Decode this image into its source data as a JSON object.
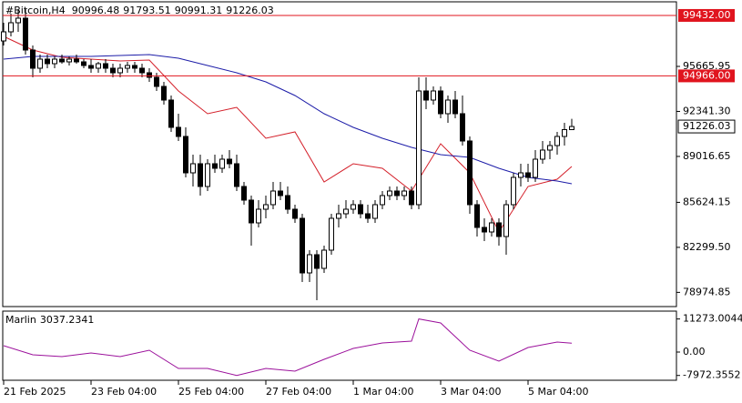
{
  "chart_data": [
    {
      "type": "candlestick",
      "symbol": "#Bitcoin,H4",
      "open": [
        97548,
        98220,
        98892,
        99228,
        96876,
        95532,
        96204,
        95868,
        96204,
        96002,
        96204,
        96002,
        95734,
        95532,
        95868,
        95532,
        95196,
        95532,
        95734,
        95532,
        95196,
        94860,
        94188,
        93180,
        91164,
        90492,
        87804,
        88476,
        86796,
        88476,
        88140,
        88812,
        88476,
        86796,
        85788,
        84108,
        85116,
        85452,
        86460,
        86124,
        85116,
        84444,
        80412,
        81756,
        80748,
        82092,
        84444,
        84780,
        85116,
        85452,
        84780,
        84444,
        85452,
        86124,
        86460,
        86124,
        86460,
        85452,
        93852,
        93180,
        93852,
        92172,
        93180,
        92172,
        90156,
        85452,
        83772,
        83436,
        84108,
        83100,
        85452,
        87468,
        87804,
        87468,
        88812,
        89484,
        89820,
        90492,
        90996.48
      ],
      "high": [
        98892,
        99564,
        99900,
        99900,
        97212,
        96540,
        96540,
        96406,
        96540,
        96406,
        96540,
        96204,
        96204,
        96002,
        96204,
        95868,
        95868,
        96002,
        96002,
        95868,
        95532,
        95196,
        94524,
        93516,
        92172,
        91164,
        89148,
        89148,
        88812,
        89148,
        89148,
        89484,
        89148,
        87132,
        86124,
        85788,
        86124,
        87132,
        87132,
        86796,
        85452,
        84780,
        82092,
        82092,
        82428,
        84780,
        85452,
        85788,
        85788,
        85788,
        85452,
        85788,
        86460,
        86796,
        86796,
        86796,
        86796,
        94860,
        94860,
        94188,
        94188,
        93516,
        93852,
        93516,
        90492,
        85788,
        84444,
        84444,
        84444,
        85788,
        87804,
        88476,
        88476,
        89484,
        90156,
        90156,
        90828,
        91500,
        91793.51
      ],
      "low": [
        97212,
        97884,
        98220,
        96540,
        94860,
        95196,
        95532,
        95532,
        95868,
        95734,
        95868,
        95532,
        95196,
        95196,
        95196,
        94860,
        94860,
        95196,
        95196,
        94860,
        94524,
        93852,
        92844,
        90828,
        90156,
        87468,
        86796,
        86124,
        86460,
        87804,
        87804,
        88140,
        86460,
        85452,
        82428,
        83772,
        84444,
        85116,
        85788,
        84780,
        84108,
        79740,
        79740,
        78396,
        80412,
        81756,
        83772,
        84444,
        84780,
        84444,
        84108,
        84108,
        85116,
        85788,
        85788,
        85788,
        85116,
        85116,
        92508,
        92844,
        91836,
        91500,
        91836,
        89820,
        84780,
        83100,
        82764,
        83100,
        82428,
        81756,
        85116,
        86796,
        87132,
        87132,
        88476,
        88812,
        89148,
        89820,
        90991.31
      ],
      "close": [
        98220,
        98892,
        99228,
        96876,
        95532,
        96204,
        95868,
        96204,
        96002,
        96204,
        96002,
        95734,
        95532,
        95868,
        95532,
        95196,
        95532,
        95734,
        95532,
        95196,
        94860,
        94188,
        93180,
        91164,
        90492,
        87804,
        88476,
        86796,
        88476,
        88140,
        88812,
        88476,
        86796,
        85788,
        84108,
        85116,
        85452,
        86460,
        86124,
        85116,
        84444,
        80412,
        81756,
        80748,
        82092,
        84444,
        84780,
        85116,
        85452,
        84780,
        84444,
        85452,
        86124,
        86460,
        86124,
        86460,
        85452,
        93852,
        93180,
        93852,
        92172,
        93180,
        92172,
        90156,
        85452,
        83772,
        83436,
        84108,
        83100,
        85452,
        87468,
        87804,
        87468,
        88812,
        89484,
        89820,
        90492,
        90996.48,
        91226.03
      ],
      "up_color": "#ffffff",
      "down_color": "#000000",
      "xlim": [
        -0.125,
        92.375
      ],
      "ylim": [
        77925,
        100437
      ],
      "yticks": [
        95665.95,
        {
          "value": 92341.3,
          "label": "92341.30"
        },
        89016.65,
        85624.15,
        {
          "value": 82299.5,
          "label": "82299.50"
        },
        78974.85
      ],
      "xticks": [
        {
          "value": 0,
          "label": "21 Feb 2025"
        },
        {
          "value": 12,
          "label": "23 Feb 04:00"
        },
        {
          "value": 24,
          "label": "25 Feb 04:00"
        },
        {
          "value": 36,
          "label": "27 Feb 04:00"
        },
        {
          "value": 48,
          "label": "1 Mar 04:00"
        },
        {
          "value": 60,
          "label": "3 Mar 04:00"
        },
        {
          "value": 72,
          "label": "5 Mar 04:00"
        }
      ],
      "lines": [
        {
          "color": "#d4202a",
          "x": [
            0,
            4,
            8,
            12,
            16,
            20,
            24,
            28,
            32,
            36,
            40,
            44,
            48,
            52,
            56,
            60,
            64,
            68,
            72,
            76,
            78
          ],
          "values": [
            97884,
            96876,
            96340,
            96204,
            96070,
            96136,
            93852,
            92172,
            92642,
            90358,
            90828,
            87132,
            88476,
            88140,
            86460,
            89954,
            87804,
            83436,
            86796,
            87334,
            88274
          ]
        },
        {
          "color": "#1c1ca8",
          "x": [
            0,
            4,
            8,
            12,
            16,
            20,
            24,
            28,
            32,
            36,
            40,
            44,
            48,
            52,
            56,
            60,
            64,
            68,
            72,
            76,
            78
          ],
          "values": [
            96204,
            96406,
            96406,
            96406,
            96473,
            96540,
            96272,
            95734,
            95196,
            94524,
            93516,
            92172,
            91164,
            90358,
            89686,
            89148,
            88946,
            88140,
            87468,
            87200,
            86998
          ]
        }
      ],
      "levels": [
        {
          "value": 99432,
          "label": "99432.00"
        },
        {
          "value": 94966,
          "label": "94966.00"
        }
      ],
      "level_color": "#e0141e"
    },
    {
      "type": "line",
      "name": "Marlin",
      "color": "#9b109b",
      "x": [
        0,
        4,
        8,
        12,
        16,
        20,
        24,
        28,
        32,
        36,
        40,
        44,
        48,
        52,
        56,
        57,
        60,
        64,
        68,
        72,
        76,
        78
      ],
      "values": [
        2170,
        -930,
        -1550,
        -310,
        -1550,
        620,
        -5580,
        -5580,
        -7972.3552,
        -5580,
        -6510,
        -2480,
        1240,
        3100,
        3720,
        11273.0044,
        9920,
        620,
        -3100,
        1550,
        3410,
        3037.2341
      ],
      "ylim": [
        -9610,
        13950
      ],
      "yticks": [
        11273.0044,
        {
          "value": 0,
          "label": "0.00"
        },
        -7972.3552
      ]
    }
  ]
}
